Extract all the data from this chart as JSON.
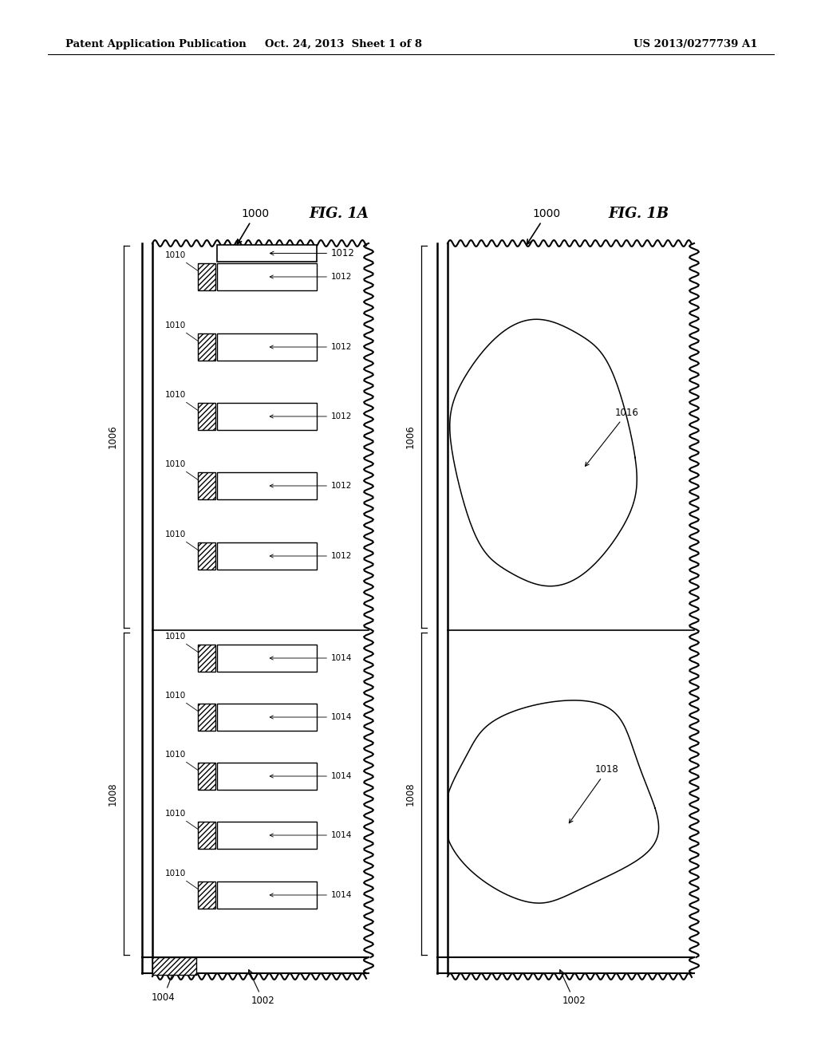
{
  "bg_color": "#ffffff",
  "header_left": "Patent Application Publication",
  "header_center": "Oct. 24, 2013  Sheet 1 of 8",
  "header_right": "US 2013/0277739 A1",
  "fig1a_label": "FIG. 1A",
  "fig1b_label": "FIG. 1B",
  "label_1000": "1000",
  "label_1002": "1002",
  "label_1004": "1004",
  "label_1006": "1006",
  "label_1008": "1008",
  "label_1010": "1010",
  "label_1012": "1012",
  "label_1014": "1014",
  "label_1016": "1016",
  "label_1018": "1018"
}
